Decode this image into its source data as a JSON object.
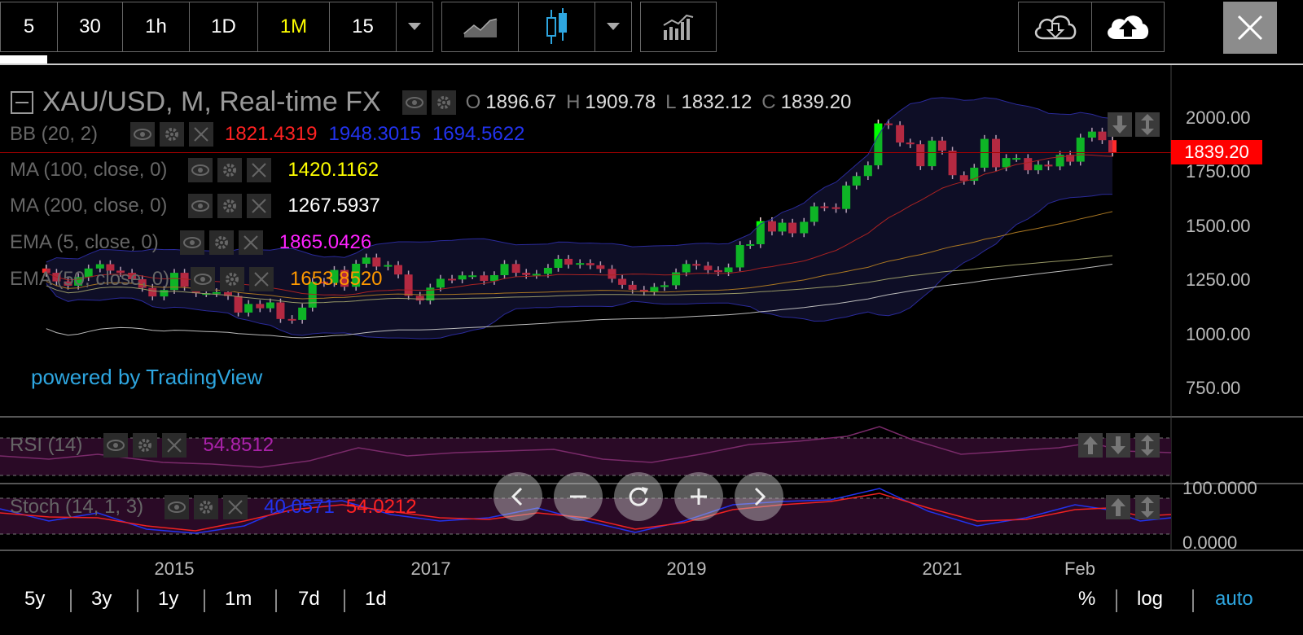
{
  "toolbar": {
    "intervals": [
      "5",
      "30",
      "1h",
      "1D",
      "1M",
      "15"
    ],
    "active_interval": "1M"
  },
  "legend": {
    "symbol_title": "XAU/USD, M, Real-time FX",
    "ohlc": {
      "o_label": "O",
      "o": "1896.67",
      "h_label": "H",
      "h": "1909.78",
      "l_label": "L",
      "l": "1832.12",
      "c_label": "C",
      "c": "1839.20"
    },
    "bb": {
      "name": "BB (20, 2)",
      "v1": "1821.4319",
      "v2": "1948.3015",
      "v3": "1694.5622"
    },
    "ma100": {
      "name": "MA (100, close, 0)",
      "value": "1420.1162"
    },
    "ma200": {
      "name": "MA (200, close, 0)",
      "value": "1267.5937"
    },
    "ema5": {
      "name": "EMA (5, close, 0)",
      "value": "1865.0426"
    },
    "ema50": {
      "name": "EMA (50, close, 0)",
      "value": "1653.8520"
    },
    "rsi": {
      "name": "RSI (14)",
      "value": "54.8512"
    },
    "stoch": {
      "name": "Stoch (14, 1, 3)",
      "k": "40.0571",
      "d": "54.0212"
    }
  },
  "watermark": "powered by TradingView",
  "price_axis": {
    "labels": [
      "2000.00",
      "1750.00",
      "1500.00",
      "1250.00",
      "1000.00",
      "750.00"
    ],
    "current_price": "1839.20",
    "stoch_labels": [
      "100.0000",
      "0.0000"
    ]
  },
  "time_axis": {
    "labels": [
      "2015",
      "2017",
      "2019",
      "2021",
      "Feb"
    ]
  },
  "range_buttons": [
    "5y",
    "3y",
    "1y",
    "1m",
    "7d",
    "1d"
  ],
  "scale_buttons": {
    "percent": "%",
    "log": "log",
    "auto": "auto"
  },
  "colors": {
    "up": "#00ff00",
    "down": "#ff2a2a",
    "accent": "#ffff00",
    "link": "#2ea6e0"
  },
  "chart_data": {
    "type": "candlestick",
    "ylim": [
      600,
      2150
    ],
    "candles": [
      {
        "t": 2014.0,
        "o": 1300,
        "c": 1280
      },
      {
        "t": 2014.08,
        "o": 1280,
        "c": 1240
      },
      {
        "t": 2014.17,
        "o": 1240,
        "c": 1220
      },
      {
        "t": 2014.25,
        "o": 1220,
        "c": 1260
      },
      {
        "t": 2014.33,
        "o": 1260,
        "c": 1300
      },
      {
        "t": 2014.42,
        "o": 1300,
        "c": 1320
      },
      {
        "t": 2014.5,
        "o": 1320,
        "c": 1290
      },
      {
        "t": 2014.58,
        "o": 1290,
        "c": 1280
      },
      {
        "t": 2014.67,
        "o": 1280,
        "c": 1250
      },
      {
        "t": 2014.75,
        "o": 1250,
        "c": 1210
      },
      {
        "t": 2014.83,
        "o": 1210,
        "c": 1170
      },
      {
        "t": 2014.92,
        "o": 1170,
        "c": 1200
      },
      {
        "t": 2015.0,
        "o": 1200,
        "c": 1280
      },
      {
        "t": 2015.08,
        "o": 1280,
        "c": 1215
      },
      {
        "t": 2015.17,
        "o": 1215,
        "c": 1185
      },
      {
        "t": 2015.25,
        "o": 1185,
        "c": 1185
      },
      {
        "t": 2015.33,
        "o": 1185,
        "c": 1190
      },
      {
        "t": 2015.42,
        "o": 1190,
        "c": 1172
      },
      {
        "t": 2015.5,
        "o": 1172,
        "c": 1095
      },
      {
        "t": 2015.58,
        "o": 1095,
        "c": 1135
      },
      {
        "t": 2015.67,
        "o": 1135,
        "c": 1115
      },
      {
        "t": 2015.75,
        "o": 1115,
        "c": 1142
      },
      {
        "t": 2015.83,
        "o": 1142,
        "c": 1065
      },
      {
        "t": 2015.92,
        "o": 1065,
        "c": 1061
      },
      {
        "t": 2016.0,
        "o": 1061,
        "c": 1118
      },
      {
        "t": 2016.08,
        "o": 1118,
        "c": 1238
      },
      {
        "t": 2016.17,
        "o": 1238,
        "c": 1233
      },
      {
        "t": 2016.25,
        "o": 1233,
        "c": 1293
      },
      {
        "t": 2016.33,
        "o": 1293,
        "c": 1215
      },
      {
        "t": 2016.42,
        "o": 1215,
        "c": 1322
      },
      {
        "t": 2016.5,
        "o": 1322,
        "c": 1351
      },
      {
        "t": 2016.58,
        "o": 1351,
        "c": 1309
      },
      {
        "t": 2016.67,
        "o": 1309,
        "c": 1316
      },
      {
        "t": 2016.75,
        "o": 1316,
        "c": 1272
      },
      {
        "t": 2016.83,
        "o": 1272,
        "c": 1173
      },
      {
        "t": 2016.92,
        "o": 1173,
        "c": 1151
      },
      {
        "t": 2017.0,
        "o": 1151,
        "c": 1211
      },
      {
        "t": 2017.08,
        "o": 1211,
        "c": 1252
      },
      {
        "t": 2017.17,
        "o": 1252,
        "c": 1249
      },
      {
        "t": 2017.25,
        "o": 1249,
        "c": 1268
      },
      {
        "t": 2017.33,
        "o": 1268,
        "c": 1268
      },
      {
        "t": 2017.42,
        "o": 1268,
        "c": 1242
      },
      {
        "t": 2017.5,
        "o": 1242,
        "c": 1269
      },
      {
        "t": 2017.58,
        "o": 1269,
        "c": 1321
      },
      {
        "t": 2017.67,
        "o": 1321,
        "c": 1280
      },
      {
        "t": 2017.75,
        "o": 1280,
        "c": 1270
      },
      {
        "t": 2017.83,
        "o": 1270,
        "c": 1275
      },
      {
        "t": 2017.92,
        "o": 1275,
        "c": 1303
      },
      {
        "t": 2018.0,
        "o": 1303,
        "c": 1345
      },
      {
        "t": 2018.08,
        "o": 1345,
        "c": 1318
      },
      {
        "t": 2018.17,
        "o": 1318,
        "c": 1325
      },
      {
        "t": 2018.25,
        "o": 1325,
        "c": 1315
      },
      {
        "t": 2018.33,
        "o": 1315,
        "c": 1298
      },
      {
        "t": 2018.42,
        "o": 1298,
        "c": 1252
      },
      {
        "t": 2018.5,
        "o": 1252,
        "c": 1224
      },
      {
        "t": 2018.58,
        "o": 1224,
        "c": 1201
      },
      {
        "t": 2018.67,
        "o": 1201,
        "c": 1192
      },
      {
        "t": 2018.75,
        "o": 1192,
        "c": 1214
      },
      {
        "t": 2018.83,
        "o": 1214,
        "c": 1222
      },
      {
        "t": 2018.92,
        "o": 1222,
        "c": 1282
      },
      {
        "t": 2019.0,
        "o": 1282,
        "c": 1321
      },
      {
        "t": 2019.08,
        "o": 1321,
        "c": 1313
      },
      {
        "t": 2019.17,
        "o": 1313,
        "c": 1292
      },
      {
        "t": 2019.25,
        "o": 1292,
        "c": 1283
      },
      {
        "t": 2019.33,
        "o": 1283,
        "c": 1305
      },
      {
        "t": 2019.42,
        "o": 1305,
        "c": 1409
      },
      {
        "t": 2019.5,
        "o": 1409,
        "c": 1413
      },
      {
        "t": 2019.58,
        "o": 1413,
        "c": 1520
      },
      {
        "t": 2019.67,
        "o": 1520,
        "c": 1472
      },
      {
        "t": 2019.75,
        "o": 1472,
        "c": 1513
      },
      {
        "t": 2019.83,
        "o": 1513,
        "c": 1464
      },
      {
        "t": 2019.92,
        "o": 1464,
        "c": 1517
      },
      {
        "t": 2020.0,
        "o": 1517,
        "c": 1589
      },
      {
        "t": 2020.08,
        "o": 1589,
        "c": 1585
      },
      {
        "t": 2020.17,
        "o": 1585,
        "c": 1577
      },
      {
        "t": 2020.25,
        "o": 1577,
        "c": 1686
      },
      {
        "t": 2020.33,
        "o": 1686,
        "c": 1730
      },
      {
        "t": 2020.42,
        "o": 1730,
        "c": 1780
      },
      {
        "t": 2020.5,
        "o": 1780,
        "c": 1975
      },
      {
        "t": 2020.58,
        "o": 1975,
        "c": 1967
      },
      {
        "t": 2020.67,
        "o": 1967,
        "c": 1886
      },
      {
        "t": 2020.75,
        "o": 1886,
        "c": 1878
      },
      {
        "t": 2020.83,
        "o": 1878,
        "c": 1776
      },
      {
        "t": 2020.92,
        "o": 1776,
        "c": 1895
      },
      {
        "t": 2021.0,
        "o": 1895,
        "c": 1848
      },
      {
        "t": 2021.08,
        "o": 1848,
        "c": 1734
      },
      {
        "t": 2021.17,
        "o": 1734,
        "c": 1708
      },
      {
        "t": 2021.25,
        "o": 1708,
        "c": 1769
      },
      {
        "t": 2021.33,
        "o": 1769,
        "c": 1903
      },
      {
        "t": 2021.42,
        "o": 1903,
        "c": 1771
      },
      {
        "t": 2021.5,
        "o": 1771,
        "c": 1814
      },
      {
        "t": 2021.58,
        "o": 1814,
        "c": 1814
      },
      {
        "t": 2021.67,
        "o": 1814,
        "c": 1757
      },
      {
        "t": 2021.75,
        "o": 1757,
        "c": 1783
      },
      {
        "t": 2021.83,
        "o": 1783,
        "c": 1775
      },
      {
        "t": 2021.92,
        "o": 1775,
        "c": 1829
      },
      {
        "t": 2022.0,
        "o": 1829,
        "c": 1797
      },
      {
        "t": 2022.08,
        "o": 1797,
        "c": 1909
      },
      {
        "t": 2022.17,
        "o": 1909,
        "c": 1937
      },
      {
        "t": 2022.25,
        "o": 1937,
        "c": 1897
      },
      {
        "t": 2022.33,
        "o": 1897,
        "c": 1839
      }
    ]
  }
}
